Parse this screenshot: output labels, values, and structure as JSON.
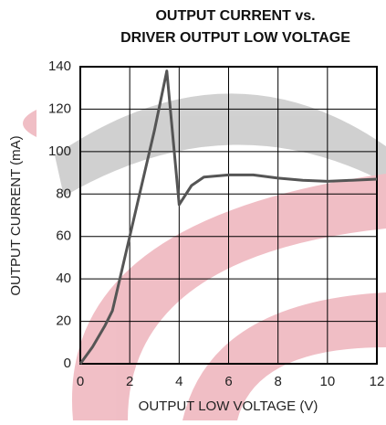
{
  "chart_data": {
    "type": "line",
    "title": [
      "OUTPUT CURRENT vs.",
      "DRIVER OUTPUT LOW VOLTAGE"
    ],
    "x_label": "OUTPUT LOW VOLTAGE (V)",
    "y_label": "OUTPUT CURRENT (mA)",
    "x": [
      0,
      0.5,
      1,
      1.3,
      2,
      3,
      3.5,
      4,
      4.5,
      5,
      6,
      7,
      8,
      9,
      10,
      11,
      12
    ],
    "values": [
      0,
      8,
      18,
      25,
      60,
      110,
      138,
      75,
      84,
      88,
      89,
      89,
      87.5,
      86.5,
      86,
      86.5,
      87
    ],
    "color": "#555555",
    "xlim": [
      0,
      12
    ],
    "xticks": [
      0,
      2,
      4,
      6,
      8,
      10,
      12
    ],
    "ylim": [
      0,
      140
    ],
    "yticks": [
      0,
      20,
      40,
      60,
      80,
      100,
      120,
      140
    ],
    "grid": true
  }
}
